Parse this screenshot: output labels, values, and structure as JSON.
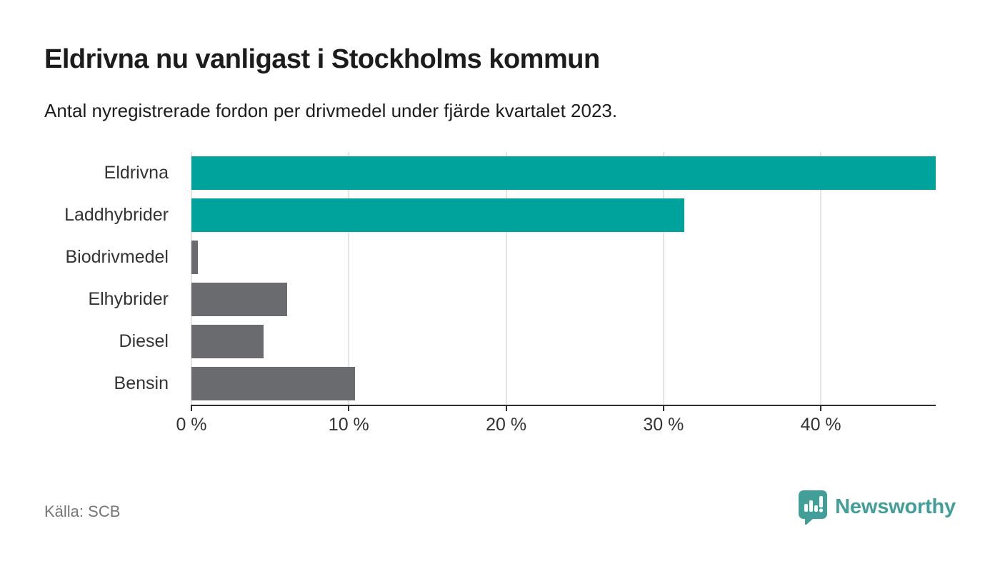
{
  "header": {
    "title": "Eldrivna nu vanligast i Stockholms kommun",
    "subtitle": "Antal nyregistrerade fordon per drivmedel under fjärde kvartalet 2023."
  },
  "chart_data": {
    "type": "bar",
    "orientation": "horizontal",
    "title": "Eldrivna nu vanligast i Stockholms kommun",
    "subtitle": "Antal nyregistrerade fordon per drivmedel under fjärde kvartalet 2023.",
    "categories": [
      "Eldrivna",
      "Laddhybrider",
      "Biodrivmedel",
      "Elhybrider",
      "Diesel",
      "Bensin"
    ],
    "values": [
      47.3,
      31.3,
      0.4,
      6.1,
      4.6,
      10.4
    ],
    "bar_colors": [
      "#00a39b",
      "#00a39b",
      "#6a6b6f",
      "#6a6b6f",
      "#6a6b6f",
      "#6a6b6f"
    ],
    "unit": "%",
    "xlabel": "",
    "ylabel": "",
    "xlim": [
      0,
      47.3
    ],
    "x_ticks": [
      0,
      10,
      20,
      30,
      40
    ],
    "x_tick_suffix": " %",
    "grid": "vertical",
    "legend": "none"
  },
  "colors": {
    "highlight": "#00a39b",
    "base_gray": "#6a6b6f",
    "gridline": "#e4e4e4",
    "axis": "#2e2e2e",
    "tick_label": "#333333",
    "source_text": "#767676",
    "logo_teal": "#429e98"
  },
  "footer": {
    "source": "Källa: SCB",
    "logo_text": "Newsworthy"
  },
  "icons": {
    "logo_badge": "newsworthy-barchart-speech-bubble-icon"
  }
}
